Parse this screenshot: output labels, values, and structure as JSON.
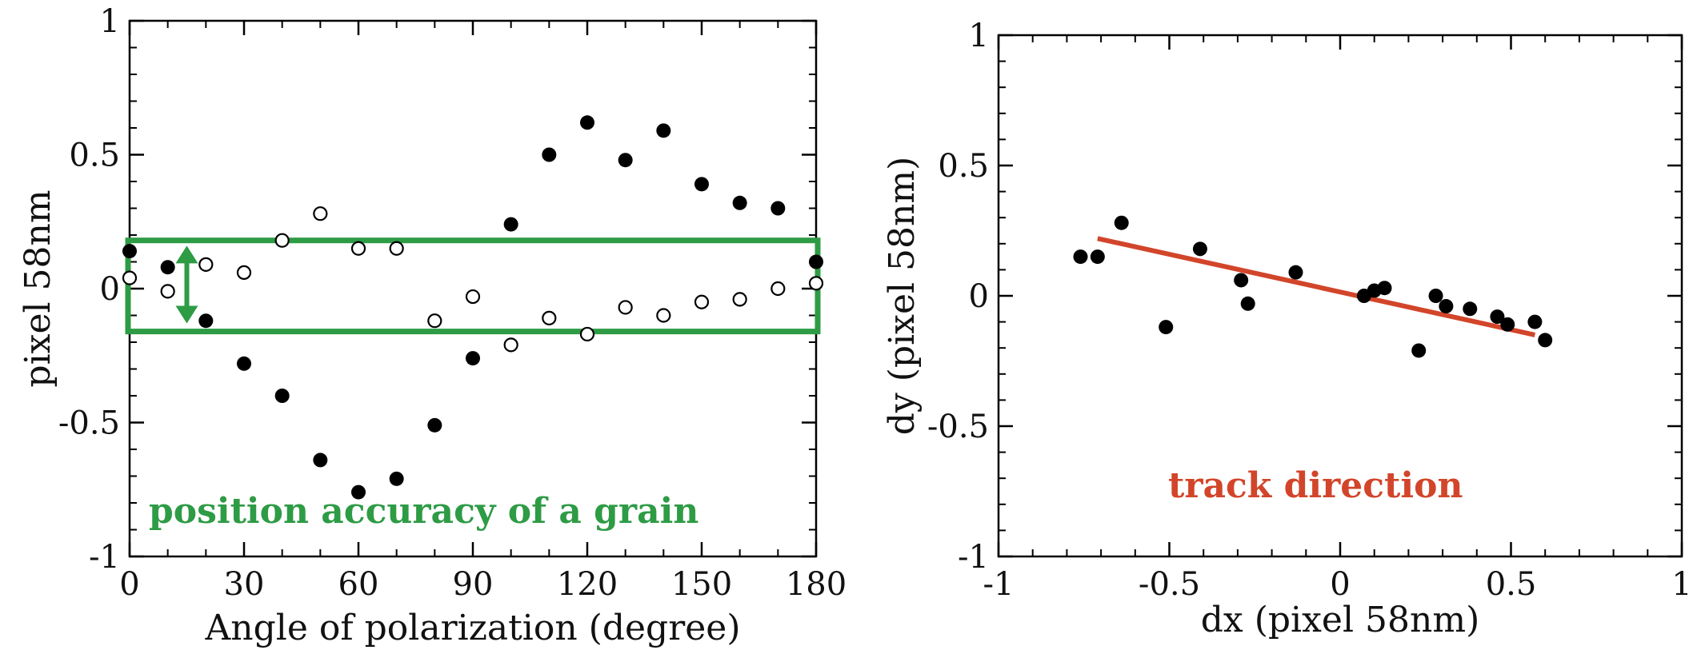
{
  "chart_data": [
    {
      "type": "scatter",
      "xlabel": "Angle of polarization (degree)",
      "ylabel": "pixel 58nm",
      "xlim": [
        0,
        180
      ],
      "ylim": [
        -1,
        1
      ],
      "xticks": [
        0,
        30,
        60,
        90,
        120,
        150,
        180
      ],
      "xtick_labels": [
        "0",
        "30",
        "60",
        "90",
        "120",
        "150",
        "180"
      ],
      "yticks": [
        -1,
        -0.5,
        0,
        0.5,
        1
      ],
      "ytick_labels": [
        "-1",
        "-0.5",
        "0",
        "0.5",
        "1"
      ],
      "grid": false,
      "series": [
        {
          "marker": "filled-circle",
          "color": "#000000",
          "x": [
            0,
            10,
            20,
            30,
            40,
            50,
            60,
            70,
            80,
            90,
            100,
            110,
            120,
            130,
            140,
            150,
            160,
            170,
            180
          ],
          "y": [
            0.14,
            0.08,
            -0.12,
            -0.28,
            -0.4,
            -0.64,
            -0.76,
            -0.71,
            -0.51,
            -0.26,
            0.24,
            0.5,
            0.62,
            0.48,
            0.59,
            0.39,
            0.32,
            0.3,
            0.1
          ]
        },
        {
          "marker": "open-circle",
          "color": "#000000",
          "x": [
            0,
            10,
            20,
            30,
            40,
            50,
            60,
            70,
            80,
            90,
            100,
            110,
            120,
            130,
            140,
            150,
            160,
            170,
            180
          ],
          "y": [
            0.04,
            -0.01,
            0.09,
            0.06,
            0.18,
            0.28,
            0.15,
            0.15,
            -0.12,
            -0.03,
            -0.21,
            -0.11,
            -0.17,
            -0.07,
            -0.1,
            -0.05,
            -0.04,
            0.0,
            0.02
          ]
        }
      ],
      "annotations": [
        {
          "text": "position accuracy of a grain",
          "color": "#2e9b45",
          "box_y_range": [
            -0.16,
            0.18
          ],
          "arrow_x": 15,
          "arrow_y_range": [
            -0.13,
            0.16
          ]
        }
      ]
    },
    {
      "type": "scatter",
      "xlabel": "dx (pixel 58nm)",
      "ylabel": "dy (pixel 58nm)",
      "xlim": [
        -1,
        1
      ],
      "ylim": [
        -1,
        1
      ],
      "xticks": [
        -1,
        -0.5,
        0,
        0.5,
        1
      ],
      "xtick_labels": [
        "-1",
        "-0.5",
        "0",
        "0.5",
        "1"
      ],
      "yticks": [
        -1,
        -0.5,
        0,
        0.5,
        1
      ],
      "ytick_labels": [
        "-1",
        "-0.5",
        "0",
        "0.5",
        "1"
      ],
      "grid": false,
      "series": [
        {
          "marker": "filled-circle",
          "color": "#000000",
          "x": [
            -0.76,
            -0.71,
            -0.64,
            -0.51,
            -0.41,
            -0.29,
            -0.27,
            -0.13,
            0.07,
            0.1,
            0.13,
            0.23,
            0.28,
            0.31,
            0.38,
            0.46,
            0.49,
            0.57,
            0.6
          ],
          "y": [
            0.15,
            0.15,
            0.28,
            -0.12,
            0.18,
            0.06,
            -0.03,
            0.09,
            0.0,
            0.02,
            0.03,
            -0.21,
            0.0,
            -0.04,
            -0.05,
            -0.08,
            -0.11,
            -0.1,
            -0.17
          ]
        }
      ],
      "trend_line": {
        "color": "#d2452a",
        "x": [
          -0.71,
          0.57
        ],
        "y": [
          0.22,
          -0.15
        ]
      },
      "annotations": [
        {
          "text": "track direction",
          "color": "#d2452a"
        }
      ]
    }
  ]
}
